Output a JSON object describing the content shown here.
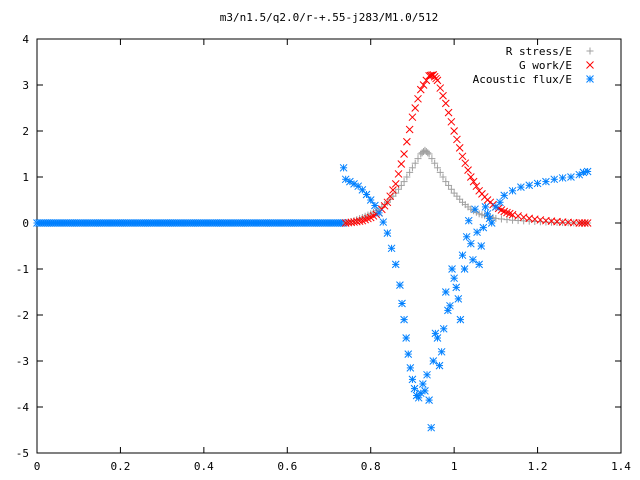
{
  "chart_data": {
    "type": "scatter",
    "title": "m3/n1.5/q2.0/r-+.55-j283/M1.0/512",
    "xlabel": "",
    "ylabel": "",
    "xlim": [
      0,
      1.4
    ],
    "ylim": [
      -5,
      4
    ],
    "xticks": [
      0,
      0.2,
      0.4,
      0.6,
      0.8,
      1,
      1.2,
      1.4
    ],
    "xtick_labels": [
      "0",
      "0.2",
      "0.4",
      "0.6",
      "0.8",
      "1",
      "1.2",
      "1.4"
    ],
    "yticks": [
      -5,
      -4,
      -3,
      -2,
      -1,
      0,
      1,
      2,
      3,
      4
    ],
    "ytick_labels": [
      "-5",
      "-4",
      "-3",
      "-2",
      "-1",
      "0",
      "1",
      "2",
      "3",
      "4"
    ],
    "grid": false,
    "legend_position": "top-right",
    "series": [
      {
        "name": "R stress/E",
        "marker": "+",
        "color": "#a0a0a0",
        "x": [
          0.74,
          0.76,
          0.78,
          0.8,
          0.82,
          0.84,
          0.86,
          0.88,
          0.9,
          0.92,
          0.93,
          0.94,
          0.96,
          0.98,
          1.0,
          1.02,
          1.04,
          1.06,
          1.08,
          1.1,
          1.14,
          1.18,
          1.22,
          1.26,
          1.3,
          1.32
        ],
        "y": [
          0.0,
          0.05,
          0.12,
          0.2,
          0.3,
          0.45,
          0.65,
          0.9,
          1.2,
          1.5,
          1.58,
          1.5,
          1.2,
          0.9,
          0.65,
          0.45,
          0.3,
          0.2,
          0.14,
          0.1,
          0.06,
          0.04,
          0.02,
          0.01,
          0.0,
          0.0
        ]
      },
      {
        "name": "G work/E",
        "marker": "x",
        "color": "#ff0000",
        "x": [
          0.74,
          0.76,
          0.78,
          0.8,
          0.82,
          0.84,
          0.86,
          0.88,
          0.9,
          0.92,
          0.94,
          0.95,
          0.96,
          0.98,
          1.0,
          1.02,
          1.04,
          1.06,
          1.08,
          1.1,
          1.12,
          1.14,
          1.18,
          1.22,
          1.26,
          1.3,
          1.32
        ],
        "y": [
          0.0,
          0.02,
          0.05,
          0.12,
          0.22,
          0.45,
          0.85,
          1.5,
          2.3,
          2.9,
          3.2,
          3.22,
          3.1,
          2.6,
          2.0,
          1.45,
          1.0,
          0.7,
          0.5,
          0.35,
          0.25,
          0.18,
          0.1,
          0.05,
          0.02,
          0.0,
          0.0
        ]
      },
      {
        "name": "Acoustic flux/E",
        "marker": "*",
        "color": "#0080ff",
        "x": [
          0.735,
          0.74,
          0.75,
          0.76,
          0.77,
          0.78,
          0.79,
          0.8,
          0.81,
          0.82,
          0.83,
          0.84,
          0.85,
          0.86,
          0.87,
          0.875,
          0.88,
          0.885,
          0.89,
          0.895,
          0.9,
          0.905,
          0.91,
          0.915,
          0.92,
          0.925,
          0.93,
          0.935,
          0.94,
          0.945,
          0.95,
          0.955,
          0.96,
          0.965,
          0.97,
          0.975,
          0.98,
          0.985,
          0.99,
          0.995,
          1.0,
          1.005,
          1.01,
          1.015,
          1.02,
          1.025,
          1.03,
          1.035,
          1.04,
          1.045,
          1.05,
          1.055,
          1.06,
          1.065,
          1.07,
          1.075,
          1.08,
          1.085,
          1.09,
          1.1,
          1.11,
          1.12,
          1.14,
          1.16,
          1.18,
          1.2,
          1.22,
          1.24,
          1.26,
          1.28,
          1.3,
          1.31,
          1.32
        ],
        "y": [
          1.2,
          0.95,
          0.9,
          0.85,
          0.8,
          0.72,
          0.62,
          0.5,
          0.38,
          0.22,
          0.02,
          -0.22,
          -0.55,
          -0.9,
          -1.35,
          -1.75,
          -2.1,
          -2.5,
          -2.85,
          -3.15,
          -3.4,
          -3.6,
          -3.75,
          -3.8,
          -3.7,
          -3.5,
          -3.65,
          -3.3,
          -3.85,
          -4.45,
          -3.0,
          -2.4,
          -2.5,
          -3.1,
          -2.8,
          -2.3,
          -1.5,
          -1.9,
          -1.8,
          -1.0,
          -1.2,
          -1.4,
          -1.65,
          -2.1,
          -0.7,
          -1.0,
          -0.3,
          0.05,
          -0.45,
          -0.8,
          0.3,
          -0.2,
          -0.9,
          -0.5,
          -0.1,
          0.35,
          0.2,
          0.1,
          0.0,
          0.35,
          0.45,
          0.6,
          0.7,
          0.78,
          0.82,
          0.86,
          0.9,
          0.95,
          0.98,
          1.0,
          1.05,
          1.1,
          1.12
        ]
      }
    ]
  }
}
